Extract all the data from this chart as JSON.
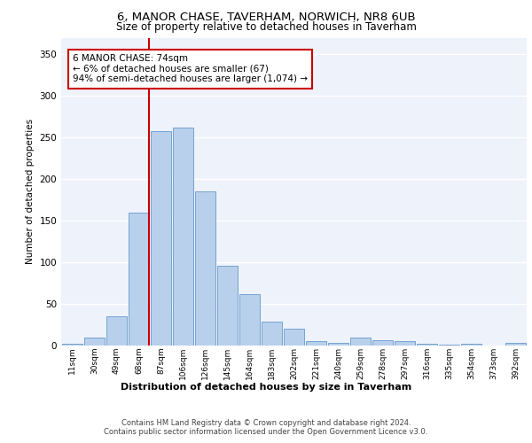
{
  "title1": "6, MANOR CHASE, TAVERHAM, NORWICH, NR8 6UB",
  "title2": "Size of property relative to detached houses in Taverham",
  "xlabel": "Distribution of detached houses by size in Taverham",
  "ylabel": "Number of detached properties",
  "categories": [
    "11sqm",
    "30sqm",
    "49sqm",
    "68sqm",
    "87sqm",
    "106sqm",
    "126sqm",
    "145sqm",
    "164sqm",
    "183sqm",
    "202sqm",
    "221sqm",
    "240sqm",
    "259sqm",
    "278sqm",
    "297sqm",
    "316sqm",
    "335sqm",
    "354sqm",
    "373sqm",
    "392sqm"
  ],
  "values": [
    2,
    10,
    35,
    160,
    258,
    262,
    185,
    96,
    62,
    29,
    20,
    5,
    3,
    10,
    6,
    5,
    2,
    1,
    2,
    0,
    3
  ],
  "bar_color": "#b8d0eb",
  "bar_edge_color": "#6699cc",
  "vline_color": "#cc0000",
  "annotation_text": "6 MANOR CHASE: 74sqm\n← 6% of detached houses are smaller (67)\n94% of semi-detached houses are larger (1,074) →",
  "annotation_box_color": "#ffffff",
  "annotation_box_edge": "#cc0000",
  "ylim": [
    0,
    370
  ],
  "yticks": [
    0,
    50,
    100,
    150,
    200,
    250,
    300,
    350
  ],
  "plot_bg": "#eef2fb",
  "footer1": "Contains HM Land Registry data © Crown copyright and database right 2024.",
  "footer2": "Contains public sector information licensed under the Open Government Licence v3.0."
}
